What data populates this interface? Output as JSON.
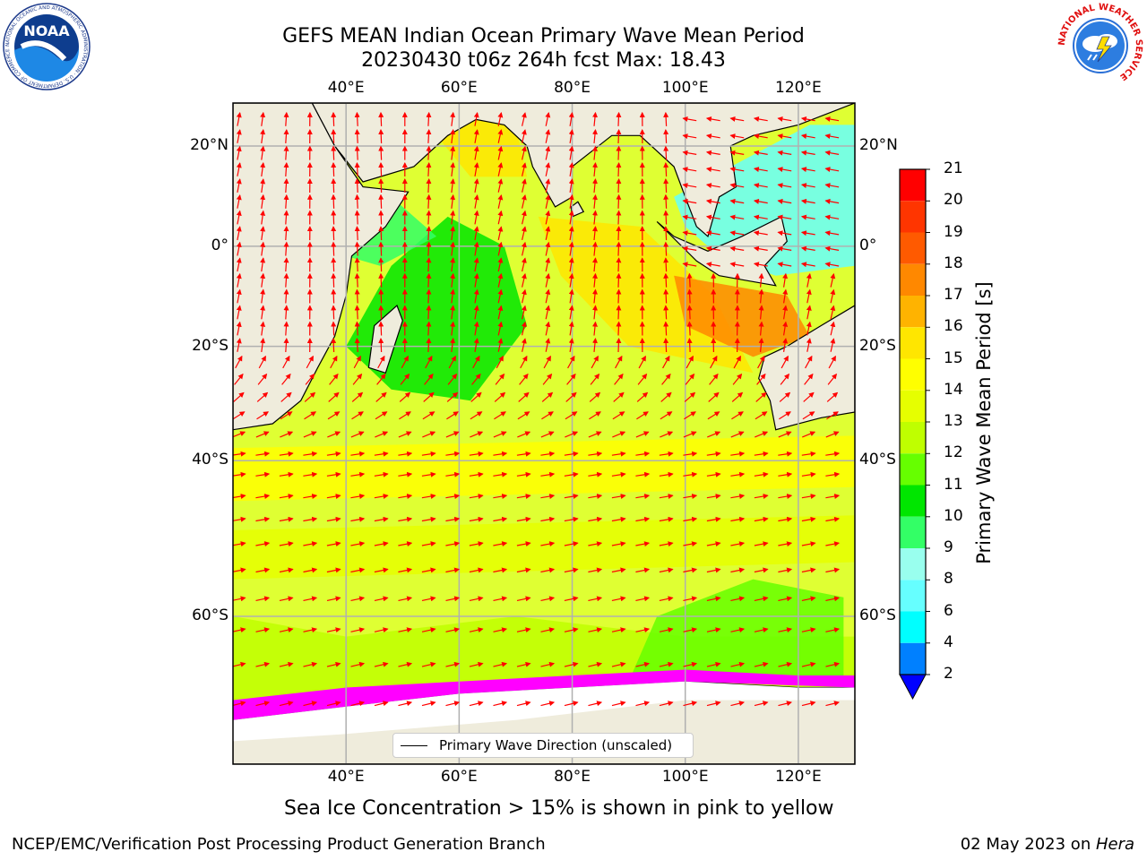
{
  "header": {
    "title_line1": "GEFS MEAN Indian Ocean Primary Wave Mean Period",
    "title_line2": "20230430 t06z 264h fcst   Max: 18.43"
  },
  "logos": {
    "noaa_text": "NOAA",
    "noaa_ring_text": "NATIONAL OCEANIC AND ATMOSPHERIC ADMINISTRATION · U.S. DEPARTMENT OF COMMERCE",
    "nws_ring_text": "NATIONAL WEATHER SERVICE"
  },
  "map": {
    "lon_ticks": [
      "40°E",
      "60°E",
      "80°E",
      "100°E",
      "120°E"
    ],
    "lat_ticks": [
      "20°N",
      "0°",
      "20°S",
      "40°S",
      "60°S"
    ],
    "lon_values": [
      40,
      60,
      80,
      100,
      120
    ],
    "lat_values": [
      20,
      0,
      -20,
      -40,
      -60
    ],
    "extent": {
      "lon_min": 20,
      "lon_max": 130,
      "lat_min": -72,
      "lat_max": 28
    },
    "colors": {
      "land": "#efecdc",
      "arrow": "#ff0000",
      "ice_pink": "#ff00ff",
      "ice_white": "#ffffff",
      "grid": "#b0b0b0"
    },
    "legend_label": "Primary Wave Direction (unscaled)"
  },
  "colorbar": {
    "title": "Primary Wave Mean Period [s]",
    "labels": [
      "21",
      "20",
      "19",
      "18",
      "17",
      "16",
      "15",
      "14",
      "13",
      "12",
      "11",
      "10",
      "9",
      "8",
      "6",
      "4",
      "2"
    ],
    "bins": [
      {
        "from": 20,
        "to": 21,
        "color": "#ff0000"
      },
      {
        "from": 19,
        "to": 20,
        "color": "#ff3500"
      },
      {
        "from": 18,
        "to": 19,
        "color": "#ff5a00"
      },
      {
        "from": 17,
        "to": 18,
        "color": "#ff8800"
      },
      {
        "from": 16,
        "to": 17,
        "color": "#ffb300"
      },
      {
        "from": 15,
        "to": 16,
        "color": "#ffe600"
      },
      {
        "from": 14,
        "to": 15,
        "color": "#ffff00"
      },
      {
        "from": 13,
        "to": 14,
        "color": "#e6ff00"
      },
      {
        "from": 12,
        "to": 13,
        "color": "#bfff00"
      },
      {
        "from": 11,
        "to": 12,
        "color": "#66ff00"
      },
      {
        "from": 10,
        "to": 11,
        "color": "#00e600"
      },
      {
        "from": 9,
        "to": 10,
        "color": "#33ff66"
      },
      {
        "from": 8,
        "to": 9,
        "color": "#99ffee"
      },
      {
        "from": 6,
        "to": 8,
        "color": "#66ffff"
      },
      {
        "from": 4,
        "to": 6,
        "color": "#00ffff"
      },
      {
        "from": 2,
        "to": 4,
        "color": "#0080ff"
      }
    ],
    "under_color": "#0000ff"
  },
  "subtitle": "Sea Ice Concentration > 15% is shown in pink to yellow",
  "footer": {
    "left": "NCEP/EMC/Verification Post Processing Product Generation Branch",
    "date": "02 May 2023 on ",
    "host": "Hera"
  }
}
